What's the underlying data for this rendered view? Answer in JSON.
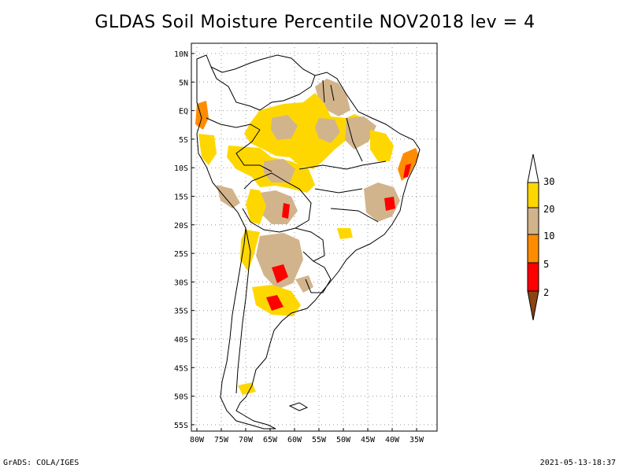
{
  "title": "GLDAS Soil Moisture Percentile NOV2018 lev = 4",
  "map": {
    "lat_labels": [
      "10N",
      "5N",
      "EQ",
      "5S",
      "10S",
      "15S",
      "20S",
      "25S",
      "30S",
      "35S",
      "40S",
      "45S",
      "50S",
      "55S"
    ],
    "lon_labels": [
      "80W",
      "75W",
      "70W",
      "65W",
      "60W",
      "55W",
      "50W",
      "45W",
      "40W",
      "35W"
    ],
    "lat_range": [
      -56,
      12
    ],
    "lon_range": [
      -81,
      -31
    ]
  },
  "legend": {
    "labels": [
      "30",
      "20",
      "10",
      "5",
      "2"
    ],
    "colors": {
      "above_30": "#ffffff",
      "20_30": "#ffd700",
      "10_20": "#d2b48c",
      "5_10": "#ff8c00",
      "2_5": "#ff0000",
      "below_2": "#8b4513"
    }
  },
  "footer": {
    "left": "GrADS: COLA/IGES",
    "right": "2021-05-13-18:37"
  }
}
